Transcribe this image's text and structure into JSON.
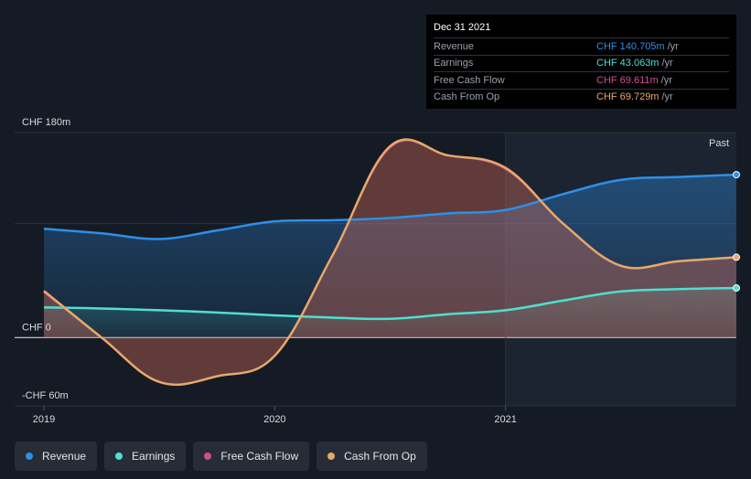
{
  "chart_data": {
    "type": "line",
    "currency": "CHF",
    "y_ticks": [
      {
        "value": 180,
        "label": "CHF 180m"
      },
      {
        "value": 0,
        "label": "CHF 0"
      },
      {
        "value": -60,
        "label": "-CHF 60m"
      }
    ],
    "ylim": [
      -60,
      180
    ],
    "xlim": [
      2019.0,
      2022.0
    ],
    "x_ticks": [
      {
        "value": 2019.0,
        "label": "2019"
      },
      {
        "value": 2020.0,
        "label": "2020"
      },
      {
        "value": 2021.0,
        "label": "2021"
      }
    ],
    "past_start": 2021.0,
    "past_label": "Past",
    "series": [
      {
        "name": "Revenue",
        "color": "#2e8fe8",
        "fill": true,
        "x": [
          2019.0,
          2019.25,
          2019.5,
          2019.75,
          2020.0,
          2020.25,
          2020.5,
          2020.75,
          2021.0,
          2021.25,
          2021.5,
          2021.75,
          2022.0
        ],
        "y": [
          95.5,
          91.5,
          86.5,
          94,
          102,
          103,
          105,
          109,
          112,
          126,
          138.5,
          141,
          143
        ]
      },
      {
        "name": "Earnings",
        "color": "#4fdfd0",
        "fill": true,
        "x": [
          2019.0,
          2019.25,
          2019.5,
          2019.75,
          2020.0,
          2020.25,
          2020.5,
          2020.75,
          2021.0,
          2021.25,
          2021.5,
          2021.75,
          2022.0
        ],
        "y": [
          26.5,
          25.5,
          24,
          22,
          19.5,
          17.5,
          16.5,
          20.5,
          24,
          32.5,
          40.5,
          42.5,
          43.5
        ]
      },
      {
        "name": "Free Cash Flow",
        "color": "#d14f8f",
        "fill": false,
        "x": [
          2019.0,
          2019.25,
          2019.5,
          2019.75,
          2020.0,
          2020.25,
          2020.5,
          2020.75,
          2021.0,
          2021.25,
          2021.5,
          2021.75,
          2022.0
        ],
        "y": [
          40,
          0,
          -39,
          -34,
          -16,
          72,
          167,
          160,
          148,
          100,
          63,
          67,
          70.5
        ]
      },
      {
        "name": "Cash From Op",
        "color": "#e8a86a",
        "fill": true,
        "x": [
          2019.0,
          2019.25,
          2019.5,
          2019.75,
          2020.0,
          2020.25,
          2020.5,
          2020.75,
          2021.0,
          2021.25,
          2021.5,
          2021.75,
          2022.0
        ],
        "y": [
          41,
          0,
          -39,
          -34,
          -16,
          72,
          168,
          160,
          149,
          100,
          63,
          67,
          70.5
        ]
      }
    ]
  },
  "tooltip": {
    "date": "Dec 31 2021",
    "rows": [
      {
        "label": "Revenue",
        "value": "CHF 140.705m",
        "unit": "/yr",
        "color": "#2e8fe8"
      },
      {
        "label": "Earnings",
        "value": "CHF 43.063m",
        "unit": "/yr",
        "color": "#4fdfd0"
      },
      {
        "label": "Free Cash Flow",
        "value": "CHF 69.611m",
        "unit": "/yr",
        "color": "#d14f8f"
      },
      {
        "label": "Cash From Op",
        "value": "CHF 69.729m",
        "unit": "/yr",
        "color": "#e8a86a"
      }
    ]
  },
  "legend": [
    {
      "label": "Revenue",
      "color": "#2e8fe8"
    },
    {
      "label": "Earnings",
      "color": "#4fdfd0"
    },
    {
      "label": "Free Cash Flow",
      "color": "#d14f8f"
    },
    {
      "label": "Cash From Op",
      "color": "#e8a86a"
    }
  ]
}
